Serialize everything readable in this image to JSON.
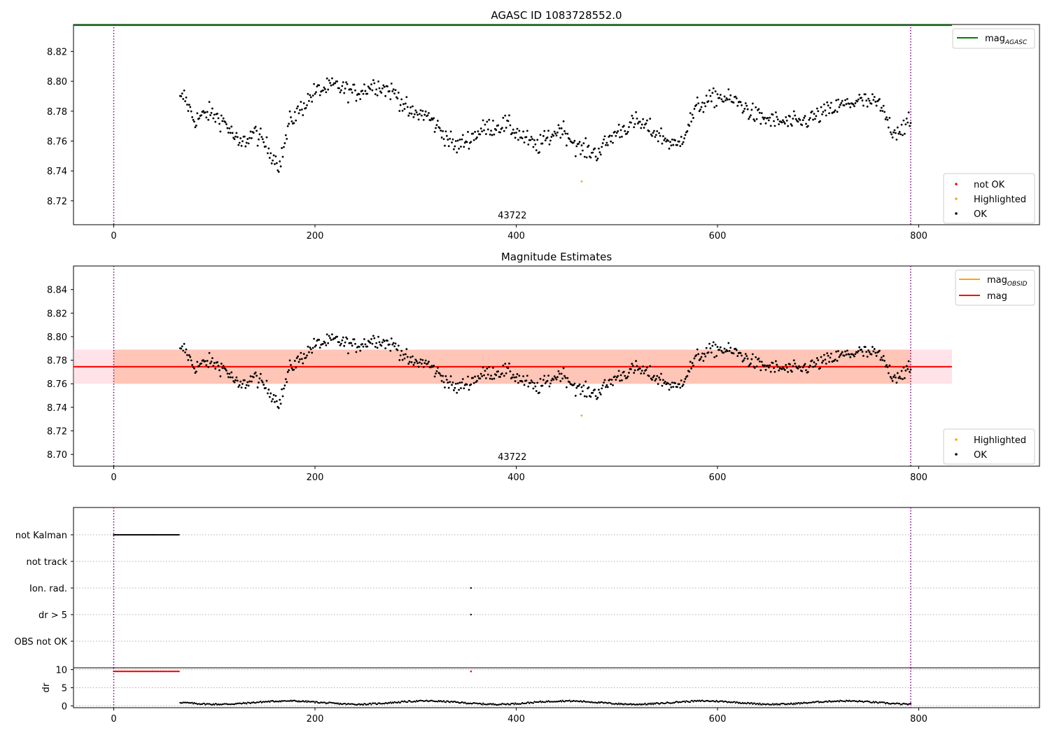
{
  "figure": {
    "title": "AGASC ID 1083728552.0"
  },
  "colors": {
    "agasc_line": "#008000",
    "obsid_line": "#ffa500",
    "mean_line": "#ff0000",
    "highlight": "#ffa500",
    "not_ok": "#ff0000",
    "ok": "#000000",
    "obs_band": "#ffa07a",
    "mean_band": "#ffc0cb",
    "window_line": "#800080"
  },
  "chart_data": [
    {
      "type": "scatter",
      "title": "",
      "xlim": [
        -40,
        920
      ],
      "ylim": [
        8.704,
        8.838
      ],
      "x_ticks": [
        0,
        200,
        400,
        600,
        800
      ],
      "y_ticks": [
        8.72,
        8.74,
        8.76,
        8.78,
        8.8,
        8.82
      ],
      "y_tick_labels": [
        "8.72",
        "8.74",
        "8.76",
        "8.78",
        "8.80",
        "8.82"
      ],
      "hlines": [
        {
          "name": "mag_AGASC",
          "y": 8.8375,
          "x_end": 833,
          "color": "#008000"
        }
      ],
      "vlines": [
        0,
        792
      ],
      "annotation": {
        "text": "43722",
        "x": 396
      },
      "legend_upper": [
        {
          "label": "mag",
          "subscript": "AGASC",
          "color": "#008000"
        }
      ],
      "legend_lower": [
        {
          "label": "not OK",
          "color": "#ff0000"
        },
        {
          "label": "Highlighted",
          "color": "#ffa500"
        },
        {
          "label": "OK",
          "color": "#000000"
        }
      ],
      "highlighted_point": {
        "x": 465,
        "y": 8.733
      },
      "series_knots": [
        [
          66,
          8.787
        ],
        [
          70,
          8.79
        ],
        [
          80,
          8.774
        ],
        [
          95,
          8.779
        ],
        [
          110,
          8.773
        ],
        [
          125,
          8.757
        ],
        [
          140,
          8.766
        ],
        [
          150,
          8.758
        ],
        [
          165,
          8.744
        ],
        [
          175,
          8.773
        ],
        [
          200,
          8.793
        ],
        [
          220,
          8.797
        ],
        [
          240,
          8.792
        ],
        [
          260,
          8.798
        ],
        [
          280,
          8.792
        ],
        [
          295,
          8.778
        ],
        [
          310,
          8.778
        ],
        [
          340,
          8.756
        ],
        [
          370,
          8.769
        ],
        [
          390,
          8.771
        ],
        [
          420,
          8.756
        ],
        [
          445,
          8.769
        ],
        [
          462,
          8.755
        ],
        [
          480,
          8.752
        ],
        [
          500,
          8.766
        ],
        [
          520,
          8.773
        ],
        [
          540,
          8.765
        ],
        [
          560,
          8.756
        ],
        [
          580,
          8.783
        ],
        [
          600,
          8.79
        ],
        [
          620,
          8.786
        ],
        [
          640,
          8.776
        ],
        [
          660,
          8.773
        ],
        [
          680,
          8.772
        ],
        [
          700,
          8.777
        ],
        [
          720,
          8.783
        ],
        [
          740,
          8.787
        ],
        [
          760,
          8.785
        ],
        [
          775,
          8.766
        ],
        [
          792,
          8.772
        ]
      ]
    },
    {
      "type": "scatter",
      "title": "Magnitude Estimates",
      "xlim": [
        -40,
        920
      ],
      "ylim": [
        8.69,
        8.86
      ],
      "x_ticks": [
        0,
        200,
        400,
        600,
        800
      ],
      "y_ticks": [
        8.7,
        8.72,
        8.74,
        8.76,
        8.78,
        8.8,
        8.82,
        8.84
      ],
      "y_tick_labels": [
        "8.70",
        "8.72",
        "8.74",
        "8.76",
        "8.78",
        "8.80",
        "8.82",
        "8.84"
      ],
      "mag": 8.7745,
      "mag_band": [
        8.76,
        8.789
      ],
      "mag_obsid": 8.7745,
      "obsid_band": [
        8.76,
        8.789
      ],
      "band_x": [
        -40,
        833
      ],
      "vlines": [
        0,
        792
      ],
      "annotation": {
        "text": "43722",
        "x": 396
      },
      "legend_upper": [
        {
          "label": "mag",
          "subscript": "OBSID",
          "color": "#ffa500"
        },
        {
          "label": "mag",
          "subscript": "",
          "color": "#ff0000"
        }
      ],
      "legend_lower": [
        {
          "label": "Highlighted",
          "color": "#ffa500"
        },
        {
          "label": "OK",
          "color": "#000000"
        }
      ],
      "highlighted_point": {
        "x": 465,
        "y": 8.733
      }
    },
    {
      "type": "scatter",
      "title": "",
      "xlim": [
        -40,
        920
      ],
      "x_ticks": [
        0,
        200,
        400,
        600,
        800
      ],
      "flag_categories": [
        "not Kalman",
        "not track",
        "Ion. rad.",
        "dr > 5",
        "OBS not OK"
      ],
      "flags": {
        "not Kalman": {
          "x_from": 0,
          "x_to": 66
        },
        "not track": null,
        "Ion. rad.": {
          "x": 355
        },
        "dr > 5": {
          "x": 355
        },
        "OBS not OK": null
      },
      "vlines": [
        0,
        792
      ]
    },
    {
      "type": "scatter",
      "title": "",
      "ylabel": "dr",
      "xlim": [
        -40,
        920
      ],
      "ylim": [
        -0.5,
        10.5
      ],
      "x_ticks": [
        0,
        200,
        400,
        600,
        800
      ],
      "y_ticks": [
        0,
        5,
        10
      ],
      "y_tick_labels": [
        "0",
        "5",
        "10"
      ],
      "clipped_x_from": 0,
      "clipped_x_to": 66,
      "clipped_extra_x": 355,
      "clipped_value": 10,
      "dr_range": [
        0.3,
        1.6
      ],
      "vlines": [
        0,
        792
      ]
    }
  ]
}
